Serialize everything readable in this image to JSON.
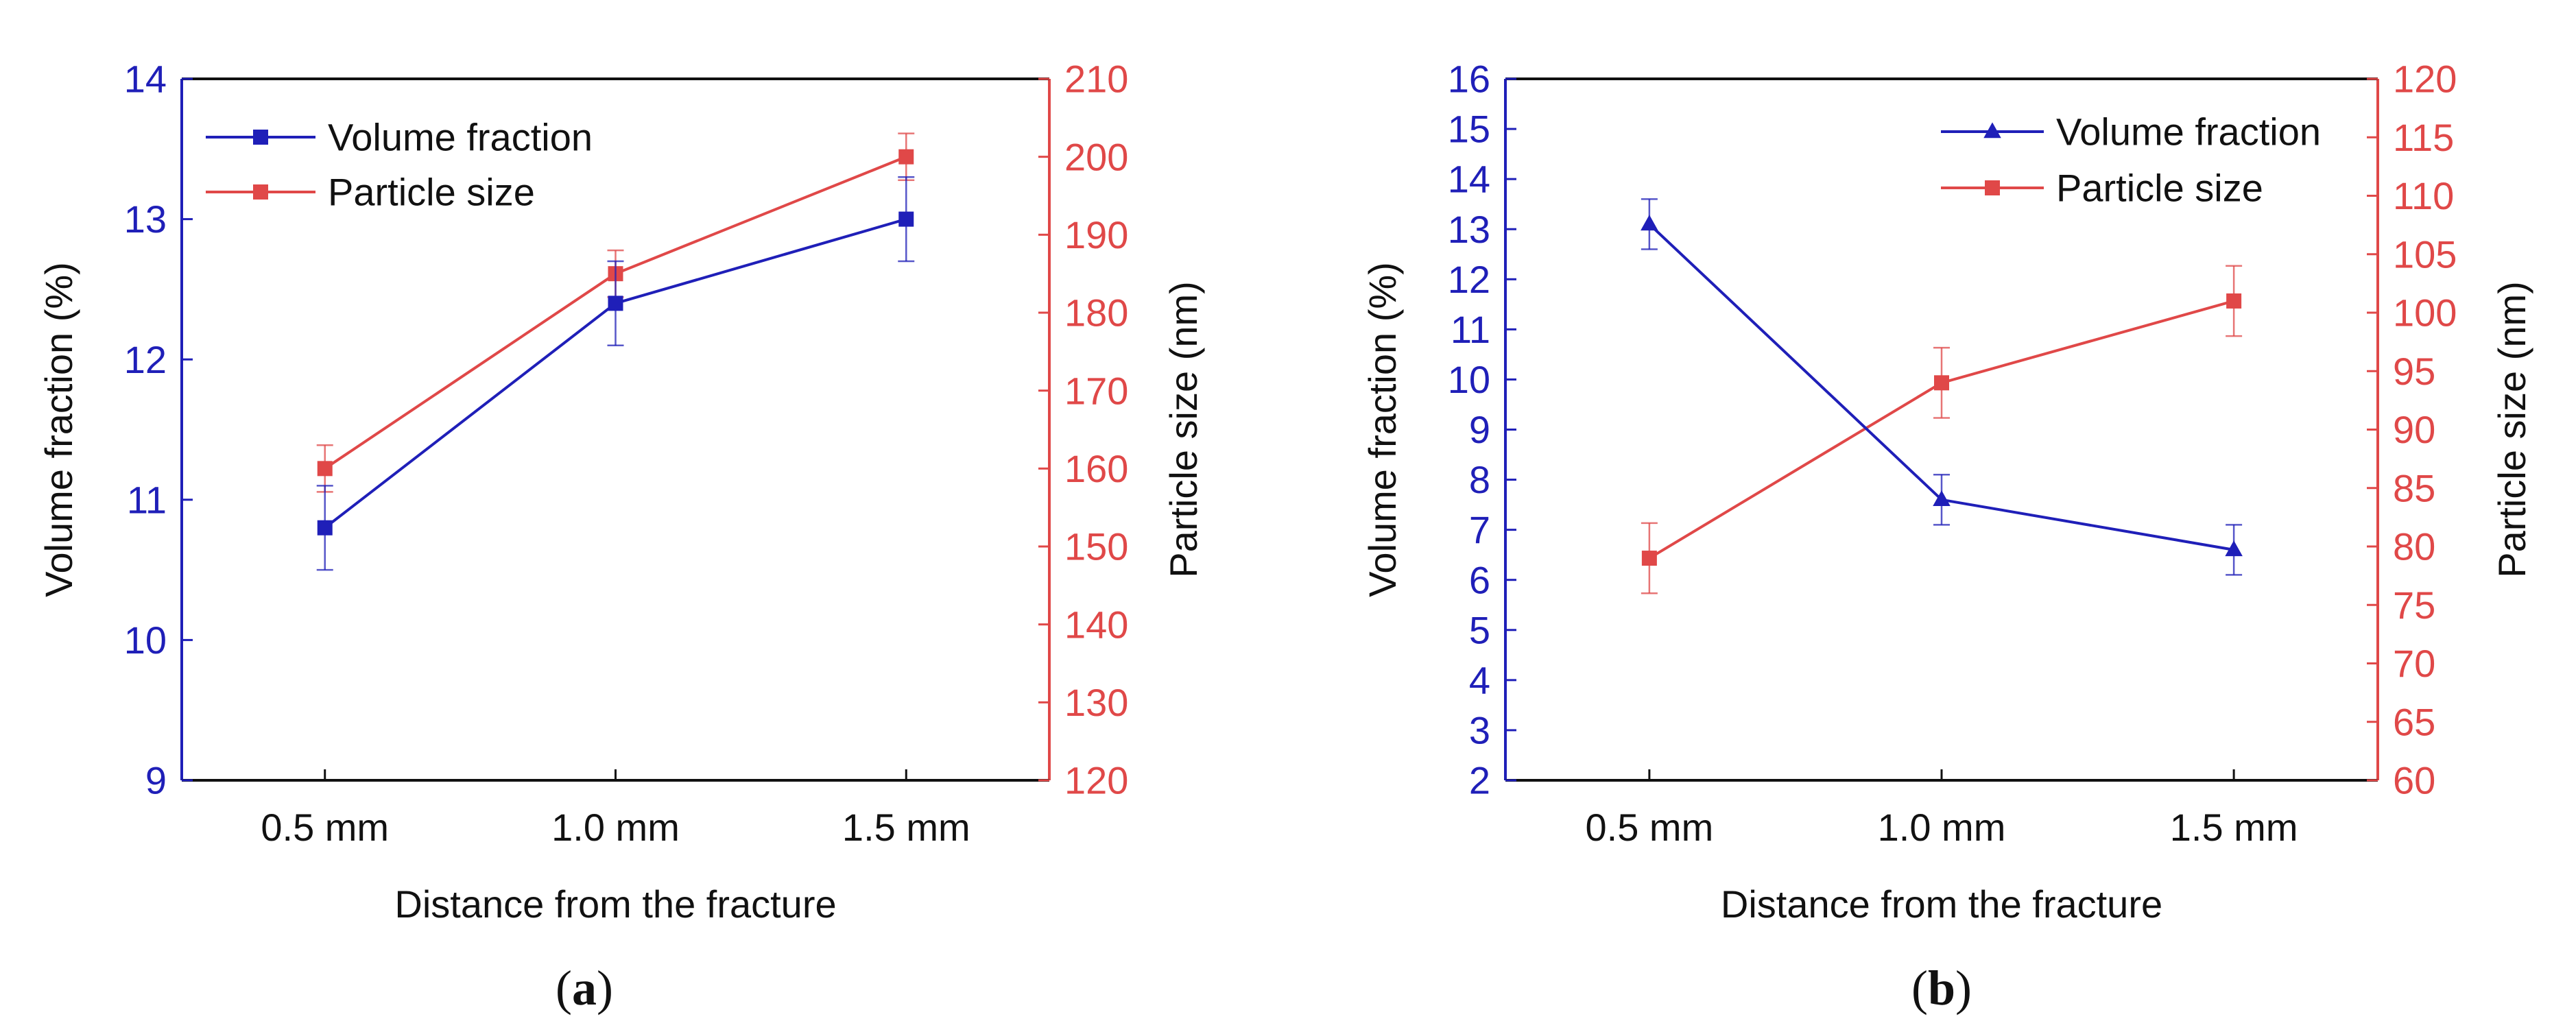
{
  "colors": {
    "blue": "#1f1fb8",
    "red": "#e04848",
    "axis_black": "#111111"
  },
  "chart_data": [
    {
      "type": "line",
      "panel_label": "a",
      "xlabel": "Distance from the fracture",
      "categories": [
        "0.5 mm",
        "1.0 mm",
        "1.5 mm"
      ],
      "left_axis": {
        "label": "Volume fraction (%)",
        "ylim": [
          9,
          14
        ],
        "ticks": [
          9,
          10,
          11,
          12,
          13,
          14
        ],
        "tick_labels": [
          "9",
          "10",
          "11",
          "12",
          "13",
          "14"
        ]
      },
      "right_axis": {
        "label": "Particle size (nm)",
        "ylim": [
          120,
          210
        ],
        "ticks": [
          120,
          130,
          140,
          150,
          160,
          170,
          180,
          190,
          200,
          210
        ],
        "tick_labels": [
          "120",
          "130",
          "140",
          "150",
          "160",
          "170",
          "180",
          "190",
          "200",
          "210"
        ]
      },
      "legend_position": "top-left",
      "series": [
        {
          "name": "Volume fraction",
          "axis": "left",
          "color": "blue",
          "marker": "square",
          "values": [
            10.8,
            12.4,
            13.0
          ],
          "errors": [
            0.3,
            0.3,
            0.3
          ]
        },
        {
          "name": "Particle size",
          "axis": "right",
          "color": "red",
          "marker": "square",
          "values": [
            160,
            185,
            200
          ],
          "errors": [
            3,
            3,
            3
          ]
        }
      ]
    },
    {
      "type": "line",
      "panel_label": "b",
      "xlabel": "Distance from the fracture",
      "categories": [
        "0.5 mm",
        "1.0 mm",
        "1.5 mm"
      ],
      "left_axis": {
        "label": "Volume fraction (%)",
        "ylim": [
          2,
          16
        ],
        "ticks": [
          2,
          3,
          4,
          5,
          6,
          7,
          8,
          9,
          10,
          11,
          12,
          13,
          14,
          15,
          16
        ],
        "tick_labels": [
          "2",
          "3",
          "4",
          "5",
          "6",
          "7",
          "8",
          "9",
          "10",
          "11",
          "12",
          "13",
          "14",
          "15",
          "16"
        ]
      },
      "right_axis": {
        "label": "Particle size (nm)",
        "ylim": [
          60,
          120
        ],
        "ticks": [
          60,
          65,
          70,
          75,
          80,
          85,
          90,
          95,
          100,
          105,
          110,
          115,
          120
        ],
        "tick_labels": [
          "60",
          "65",
          "70",
          "75",
          "80",
          "85",
          "90",
          "95",
          "100",
          "105",
          "110",
          "115",
          "120"
        ]
      },
      "legend_position": "top-right",
      "series": [
        {
          "name": "Volume fraction",
          "axis": "left",
          "color": "blue",
          "marker": "triangle",
          "values": [
            13.1,
            7.6,
            6.6
          ],
          "errors": [
            0.5,
            0.5,
            0.5
          ]
        },
        {
          "name": "Particle size",
          "axis": "right",
          "color": "red",
          "marker": "square",
          "values": [
            79,
            94,
            101
          ],
          "errors": [
            3,
            3,
            3
          ]
        }
      ]
    }
  ]
}
